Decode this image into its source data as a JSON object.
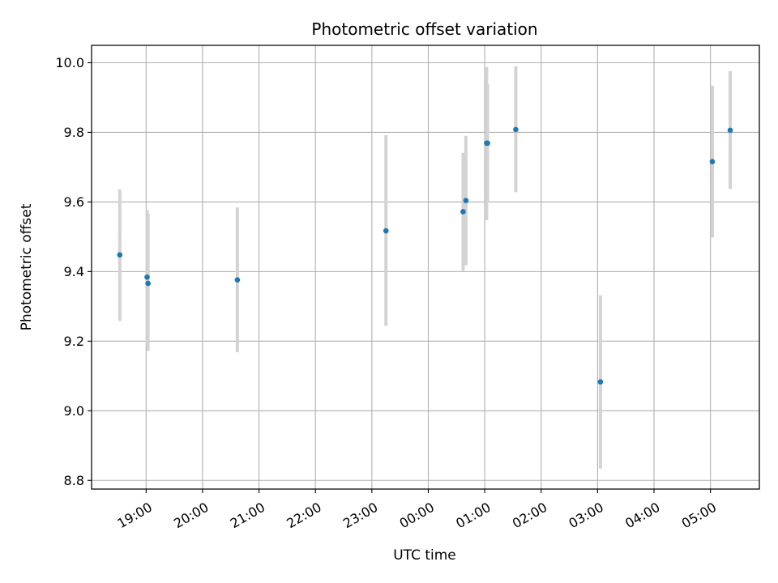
{
  "chart_data": {
    "type": "scatter",
    "title": "Photometric offset variation",
    "xlabel": "UTC time",
    "ylabel": "Photometric offset",
    "x_ticks": [
      "19:00",
      "20:00",
      "21:00",
      "22:00",
      "23:00",
      "00:00",
      "01:00",
      "02:00",
      "03:00",
      "04:00",
      "05:00"
    ],
    "y_ticks": [
      "8.8",
      "9.0",
      "9.2",
      "9.4",
      "9.6",
      "9.8",
      "10.0"
    ],
    "y_tick_values": [
      8.8,
      9.0,
      9.2,
      9.4,
      9.6,
      9.8,
      10.0
    ],
    "xlim": [
      "18:02",
      "05:52"
    ],
    "ylim": [
      8.775,
      10.05
    ],
    "grid": true,
    "marker_color": "#1f77b4",
    "errorbar_color": "#d3d3d3",
    "series": [
      {
        "points": [
          {
            "x": "18:32",
            "y": 9.448,
            "err_low": 9.258,
            "err_high": 9.636
          },
          {
            "x": "19:01",
            "y": 9.384,
            "err_low": 9.19,
            "err_high": 9.576
          },
          {
            "x": "19:02",
            "y": 9.366,
            "err_low": 9.172,
            "err_high": 9.566
          },
          {
            "x": "20:37",
            "y": 9.376,
            "err_low": 9.168,
            "err_high": 9.584
          },
          {
            "x": "23:15",
            "y": 9.517,
            "err_low": 9.244,
            "err_high": 9.792
          },
          {
            "x": "00:37",
            "y": 9.572,
            "err_low": 9.402,
            "err_high": 9.741
          },
          {
            "x": "00:40",
            "y": 9.604,
            "err_low": 9.418,
            "err_high": 9.79
          },
          {
            "x": "01:02",
            "y": 9.769,
            "err_low": 9.548,
            "err_high": 9.988
          },
          {
            "x": "01:03",
            "y": 9.769,
            "err_low": 9.6,
            "err_high": 9.938
          },
          {
            "x": "01:33",
            "y": 9.808,
            "err_low": 9.628,
            "err_high": 9.99
          },
          {
            "x": "03:03",
            "y": 9.083,
            "err_low": 8.834,
            "err_high": 9.332
          },
          {
            "x": "05:02",
            "y": 9.716,
            "err_low": 9.498,
            "err_high": 9.934
          },
          {
            "x": "05:21",
            "y": 9.806,
            "err_low": 9.637,
            "err_high": 9.976
          }
        ]
      }
    ]
  }
}
